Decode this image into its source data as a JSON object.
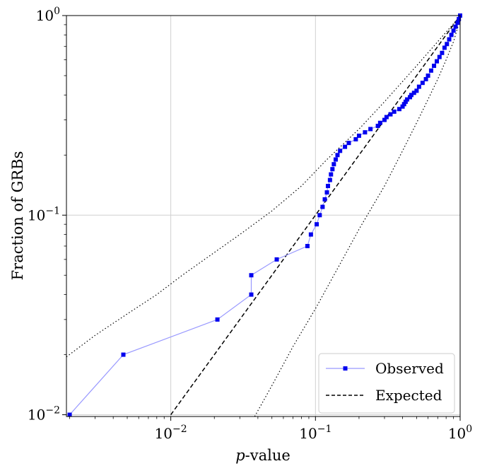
{
  "chart_data": {
    "type": "line",
    "title": "",
    "xlabel": "p-value",
    "ylabel": "Fraction of GRBs",
    "x_scale": "log",
    "y_scale": "log",
    "xlim": [
      0.0019,
      1.0
    ],
    "ylim": [
      0.0098,
      1.0
    ],
    "grid": true,
    "legend_position": "bottom-right",
    "x_ticks": [
      {
        "value": 0.01,
        "base": "10",
        "exp": "−2"
      },
      {
        "value": 0.1,
        "base": "10",
        "exp": "−1"
      },
      {
        "value": 1.0,
        "base": "10",
        "exp": "0"
      }
    ],
    "y_ticks": [
      {
        "value": 0.01,
        "base": "10",
        "exp": "−2"
      },
      {
        "value": 0.1,
        "base": "10",
        "exp": "−1"
      },
      {
        "value": 1.0,
        "base": "10",
        "exp": "0"
      }
    ],
    "series": [
      {
        "name": "Observed",
        "color": "#0000ee",
        "line_color": "#9999ff",
        "marker": "square",
        "x": [
          0.002,
          0.0047,
          0.021,
          0.036,
          0.036,
          0.054,
          0.088,
          0.093,
          0.102,
          0.107,
          0.112,
          0.116,
          0.12,
          0.122,
          0.126,
          0.128,
          0.131,
          0.134,
          0.138,
          0.142,
          0.148,
          0.16,
          0.17,
          0.19,
          0.2,
          0.22,
          0.24,
          0.27,
          0.28,
          0.3,
          0.31,
          0.33,
          0.35,
          0.38,
          0.4,
          0.41,
          0.42,
          0.43,
          0.45,
          0.46,
          0.48,
          0.5,
          0.52,
          0.55,
          0.58,
          0.6,
          0.63,
          0.66,
          0.69,
          0.72,
          0.75,
          0.78,
          0.81,
          0.84,
          0.87,
          0.9,
          0.93,
          0.96,
          0.98,
          1.0
        ],
        "y": [
          0.01,
          0.02,
          0.03,
          0.04,
          0.05,
          0.06,
          0.07,
          0.08,
          0.09,
          0.1,
          0.11,
          0.12,
          0.13,
          0.14,
          0.15,
          0.16,
          0.17,
          0.18,
          0.19,
          0.2,
          0.21,
          0.22,
          0.23,
          0.24,
          0.25,
          0.26,
          0.27,
          0.28,
          0.29,
          0.3,
          0.31,
          0.32,
          0.33,
          0.34,
          0.35,
          0.36,
          0.37,
          0.38,
          0.39,
          0.4,
          0.41,
          0.42,
          0.44,
          0.46,
          0.48,
          0.5,
          0.53,
          0.56,
          0.59,
          0.62,
          0.65,
          0.69,
          0.72,
          0.76,
          0.8,
          0.84,
          0.88,
          0.92,
          0.96,
          1.0
        ]
      },
      {
        "name": "Expected",
        "color": "#000000",
        "dash": "dashed",
        "x": [
          0.01,
          1.0
        ],
        "y": [
          0.01,
          1.0
        ]
      }
    ],
    "bands": {
      "color": "#000000",
      "dash": "dotted",
      "upper": {
        "x": [
          0.0019,
          0.003,
          0.005,
          0.008,
          0.012,
          0.02,
          0.03,
          0.05,
          0.08,
          0.12,
          0.2,
          0.3,
          0.5,
          0.7,
          0.9,
          1.0
        ],
        "y": [
          0.0195,
          0.025,
          0.032,
          0.04,
          0.05,
          0.065,
          0.08,
          0.105,
          0.14,
          0.19,
          0.27,
          0.37,
          0.56,
          0.74,
          0.91,
          1.0
        ]
      },
      "lower": {
        "x": [
          0.038,
          0.05,
          0.07,
          0.1,
          0.15,
          0.2,
          0.3,
          0.4,
          0.5,
          0.6,
          0.7,
          0.8,
          0.9,
          1.0
        ],
        "y": [
          0.0098,
          0.014,
          0.022,
          0.034,
          0.058,
          0.085,
          0.14,
          0.21,
          0.29,
          0.38,
          0.48,
          0.6,
          0.74,
          0.96
        ]
      }
    }
  }
}
